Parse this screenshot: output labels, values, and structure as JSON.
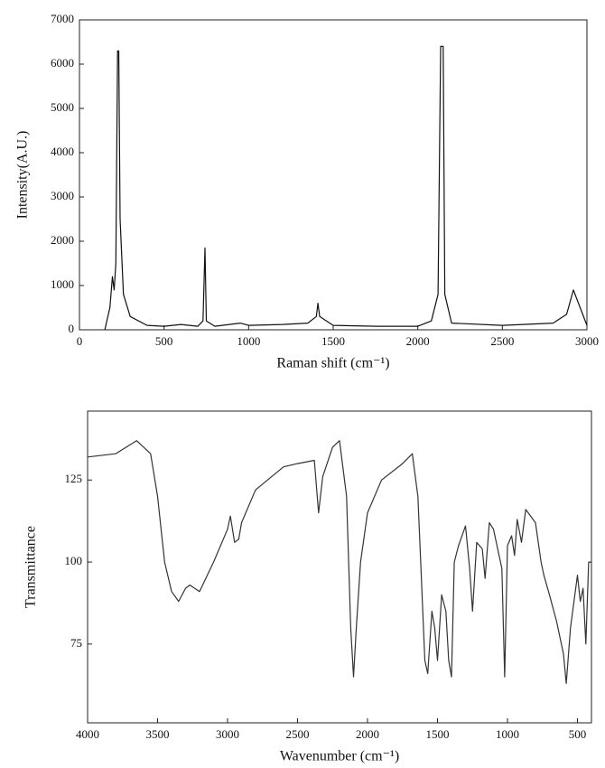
{
  "chart_data": [
    {
      "type": "line",
      "x_label": "Raman shift (cm⁻¹)",
      "y_label": "Intensity(A.U.)",
      "color": "#111111",
      "xlim": [
        0,
        3000
      ],
      "ylim": [
        0,
        7000
      ],
      "xticks": [
        0,
        500,
        1000,
        1500,
        2000,
        2500,
        3000
      ],
      "yticks": [
        0,
        1000,
        2000,
        3000,
        4000,
        5000,
        6000,
        7000
      ],
      "x": [
        150,
        180,
        195,
        205,
        215,
        225,
        232,
        240,
        260,
        300,
        400,
        500,
        600,
        700,
        730,
        742,
        750,
        800,
        950,
        1000,
        1200,
        1350,
        1400,
        1410,
        1420,
        1500,
        1760,
        2000,
        2080,
        2120,
        2135,
        2150,
        2160,
        2200,
        2500,
        2800,
        2880,
        2920,
        2950,
        3000
      ],
      "values": [
        0,
        500,
        1200,
        900,
        1500,
        6300,
        6300,
        2500,
        800,
        300,
        100,
        80,
        120,
        80,
        200,
        1850,
        200,
        80,
        150,
        100,
        120,
        150,
        300,
        600,
        300,
        100,
        80,
        80,
        200,
        800,
        6400,
        6400,
        800,
        150,
        100,
        150,
        350,
        900,
        600,
        100
      ]
    },
    {
      "type": "line",
      "x_label": "Wavenumber (cm⁻¹)",
      "y_label": "Transmittance",
      "color": "#333333",
      "xlim": [
        4000,
        400
      ],
      "ylim": [
        51,
        146
      ],
      "xticks": [
        4000,
        3500,
        3000,
        2500,
        2000,
        1500,
        1000,
        500
      ],
      "yticks": [
        75,
        100,
        125
      ],
      "x": [
        4000,
        3800,
        3650,
        3550,
        3500,
        3450,
        3400,
        3350,
        3300,
        3270,
        3200,
        3100,
        3000,
        2980,
        2950,
        2920,
        2900,
        2800,
        2600,
        2500,
        2380,
        2350,
        2320,
        2250,
        2200,
        2150,
        2120,
        2100,
        2080,
        2050,
        2000,
        1900,
        1750,
        1680,
        1640,
        1620,
        1590,
        1570,
        1540,
        1520,
        1500,
        1470,
        1440,
        1420,
        1400,
        1380,
        1350,
        1300,
        1270,
        1250,
        1220,
        1180,
        1160,
        1130,
        1100,
        1040,
        1020,
        1000,
        970,
        950,
        930,
        900,
        870,
        800,
        760,
        740,
        700,
        650,
        600,
        580,
        550,
        500,
        480,
        460,
        440,
        420,
        400
      ],
      "values": [
        132,
        133,
        137,
        133,
        120,
        100,
        91,
        88,
        92,
        93,
        91,
        100,
        110,
        114,
        106,
        107,
        112,
        122,
        129,
        130,
        131,
        115,
        126,
        135,
        137,
        120,
        80,
        65,
        80,
        100,
        115,
        125,
        130,
        133,
        120,
        100,
        70,
        66,
        85,
        80,
        70,
        90,
        85,
        70,
        65,
        100,
        105,
        111,
        98,
        85,
        106,
        104,
        95,
        112,
        110,
        98,
        65,
        105,
        108,
        102,
        113,
        106,
        116,
        112,
        100,
        96,
        90,
        82,
        72,
        63,
        80,
        96,
        88,
        92,
        75,
        100,
        100
      ]
    }
  ]
}
